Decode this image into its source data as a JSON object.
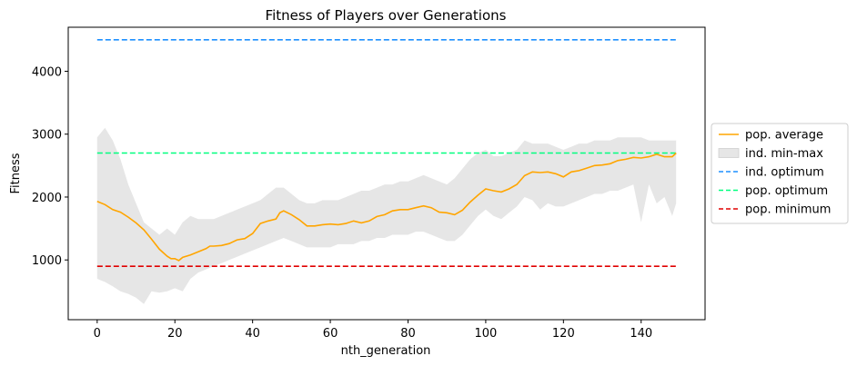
{
  "chart_data": {
    "type": "line",
    "title": "Fitness of Players over Generations",
    "xlabel": "nth_generation",
    "ylabel": "Fitness",
    "xlim": [
      -7.45,
      156.45
    ],
    "ylim": [
      50,
      4700
    ],
    "xticks": [
      0,
      20,
      40,
      60,
      80,
      100,
      120,
      140
    ],
    "yticks": [
      1000,
      2000,
      3000,
      4000
    ],
    "grid": false,
    "legend_position": "right-outside",
    "colors": {
      "average": "#ffa500",
      "band": "#e6e6e6",
      "ind_optimum": "#1e90ff",
      "pop_optimum": "#00ff7f",
      "pop_minimum": "#e00000"
    },
    "average_points": [
      [
        0,
        1930
      ],
      [
        2,
        1880
      ],
      [
        4,
        1800
      ],
      [
        6,
        1760
      ],
      [
        8,
        1680
      ],
      [
        10,
        1590
      ],
      [
        12,
        1480
      ],
      [
        14,
        1330
      ],
      [
        16,
        1170
      ],
      [
        18,
        1060
      ],
      [
        19,
        1020
      ],
      [
        20,
        1020
      ],
      [
        21,
        990
      ],
      [
        22,
        1040
      ],
      [
        24,
        1080
      ],
      [
        26,
        1130
      ],
      [
        28,
        1180
      ],
      [
        29,
        1220
      ],
      [
        30,
        1220
      ],
      [
        32,
        1230
      ],
      [
        34,
        1260
      ],
      [
        36,
        1320
      ],
      [
        38,
        1340
      ],
      [
        40,
        1420
      ],
      [
        42,
        1580
      ],
      [
        44,
        1620
      ],
      [
        46,
        1650
      ],
      [
        47,
        1750
      ],
      [
        48,
        1780
      ],
      [
        50,
        1720
      ],
      [
        52,
        1640
      ],
      [
        54,
        1540
      ],
      [
        56,
        1540
      ],
      [
        58,
        1560
      ],
      [
        60,
        1570
      ],
      [
        62,
        1560
      ],
      [
        64,
        1580
      ],
      [
        66,
        1620
      ],
      [
        68,
        1590
      ],
      [
        70,
        1620
      ],
      [
        72,
        1690
      ],
      [
        74,
        1720
      ],
      [
        76,
        1780
      ],
      [
        78,
        1800
      ],
      [
        80,
        1800
      ],
      [
        82,
        1830
      ],
      [
        84,
        1860
      ],
      [
        86,
        1830
      ],
      [
        88,
        1760
      ],
      [
        90,
        1750
      ],
      [
        92,
        1720
      ],
      [
        94,
        1790
      ],
      [
        96,
        1920
      ],
      [
        98,
        2030
      ],
      [
        100,
        2130
      ],
      [
        102,
        2100
      ],
      [
        104,
        2080
      ],
      [
        106,
        2130
      ],
      [
        108,
        2200
      ],
      [
        110,
        2340
      ],
      [
        112,
        2400
      ],
      [
        114,
        2390
      ],
      [
        116,
        2400
      ],
      [
        118,
        2370
      ],
      [
        120,
        2320
      ],
      [
        122,
        2400
      ],
      [
        124,
        2420
      ],
      [
        126,
        2460
      ],
      [
        128,
        2500
      ],
      [
        130,
        2510
      ],
      [
        132,
        2530
      ],
      [
        134,
        2580
      ],
      [
        136,
        2600
      ],
      [
        138,
        2630
      ],
      [
        140,
        2620
      ],
      [
        142,
        2640
      ],
      [
        144,
        2680
      ],
      [
        146,
        2640
      ],
      [
        148,
        2640
      ],
      [
        149,
        2700
      ]
    ],
    "minmax_band": [
      [
        0,
        700,
        2950
      ],
      [
        2,
        650,
        3100
      ],
      [
        4,
        580,
        2900
      ],
      [
        6,
        500,
        2600
      ],
      [
        8,
        460,
        2200
      ],
      [
        10,
        400,
        1900
      ],
      [
        12,
        300,
        1600
      ],
      [
        14,
        500,
        1500
      ],
      [
        16,
        480,
        1400
      ],
      [
        18,
        500,
        1500
      ],
      [
        20,
        550,
        1400
      ],
      [
        22,
        500,
        1600
      ],
      [
        24,
        700,
        1700
      ],
      [
        26,
        800,
        1650
      ],
      [
        28,
        850,
        1650
      ],
      [
        30,
        900,
        1650
      ],
      [
        32,
        950,
        1700
      ],
      [
        34,
        1000,
        1750
      ],
      [
        36,
        1050,
        1800
      ],
      [
        38,
        1100,
        1850
      ],
      [
        40,
        1150,
        1900
      ],
      [
        42,
        1200,
        1950
      ],
      [
        44,
        1250,
        2050
      ],
      [
        46,
        1300,
        2150
      ],
      [
        48,
        1350,
        2150
      ],
      [
        50,
        1300,
        2050
      ],
      [
        52,
        1250,
        1950
      ],
      [
        54,
        1200,
        1900
      ],
      [
        56,
        1200,
        1900
      ],
      [
        58,
        1200,
        1950
      ],
      [
        60,
        1200,
        1950
      ],
      [
        62,
        1250,
        1950
      ],
      [
        64,
        1250,
        2000
      ],
      [
        66,
        1250,
        2050
      ],
      [
        68,
        1300,
        2100
      ],
      [
        70,
        1300,
        2100
      ],
      [
        72,
        1350,
        2150
      ],
      [
        74,
        1350,
        2200
      ],
      [
        76,
        1400,
        2200
      ],
      [
        78,
        1400,
        2250
      ],
      [
        80,
        1400,
        2250
      ],
      [
        82,
        1450,
        2300
      ],
      [
        84,
        1450,
        2350
      ],
      [
        86,
        1400,
        2300
      ],
      [
        88,
        1350,
        2250
      ],
      [
        90,
        1300,
        2200
      ],
      [
        92,
        1300,
        2300
      ],
      [
        94,
        1400,
        2450
      ],
      [
        96,
        1550,
        2600
      ],
      [
        98,
        1700,
        2700
      ],
      [
        100,
        1800,
        2750
      ],
      [
        102,
        1700,
        2650
      ],
      [
        104,
        1650,
        2650
      ],
      [
        106,
        1750,
        2700
      ],
      [
        108,
        1850,
        2750
      ],
      [
        110,
        2000,
        2900
      ],
      [
        112,
        1950,
        2850
      ],
      [
        114,
        1800,
        2850
      ],
      [
        116,
        1900,
        2850
      ],
      [
        118,
        1850,
        2800
      ],
      [
        120,
        1850,
        2750
      ],
      [
        122,
        1900,
        2800
      ],
      [
        124,
        1950,
        2850
      ],
      [
        126,
        2000,
        2850
      ],
      [
        128,
        2050,
        2900
      ],
      [
        130,
        2050,
        2900
      ],
      [
        132,
        2100,
        2900
      ],
      [
        134,
        2100,
        2950
      ],
      [
        136,
        2150,
        2950
      ],
      [
        138,
        2200,
        2950
      ],
      [
        140,
        1600,
        2950
      ],
      [
        142,
        2200,
        2900
      ],
      [
        144,
        1900,
        2900
      ],
      [
        146,
        2000,
        2900
      ],
      [
        148,
        1700,
        2900
      ],
      [
        149,
        1900,
        2900
      ]
    ],
    "ind_optimum": 4500,
    "pop_optimum": 2700,
    "pop_minimum": 900,
    "hline_x_range": [
      0,
      149
    ],
    "legend": [
      {
        "label": "pop. average",
        "style": "line",
        "color": "#ffa500"
      },
      {
        "label": "ind. min-max",
        "style": "band",
        "color": "#e6e6e6"
      },
      {
        "label": "ind. optimum",
        "style": "dashed",
        "color": "#1e90ff"
      },
      {
        "label": "pop. optimum",
        "style": "dashed",
        "color": "#00ff7f"
      },
      {
        "label": "pop. minimum",
        "style": "dashed",
        "color": "#e00000"
      }
    ]
  }
}
